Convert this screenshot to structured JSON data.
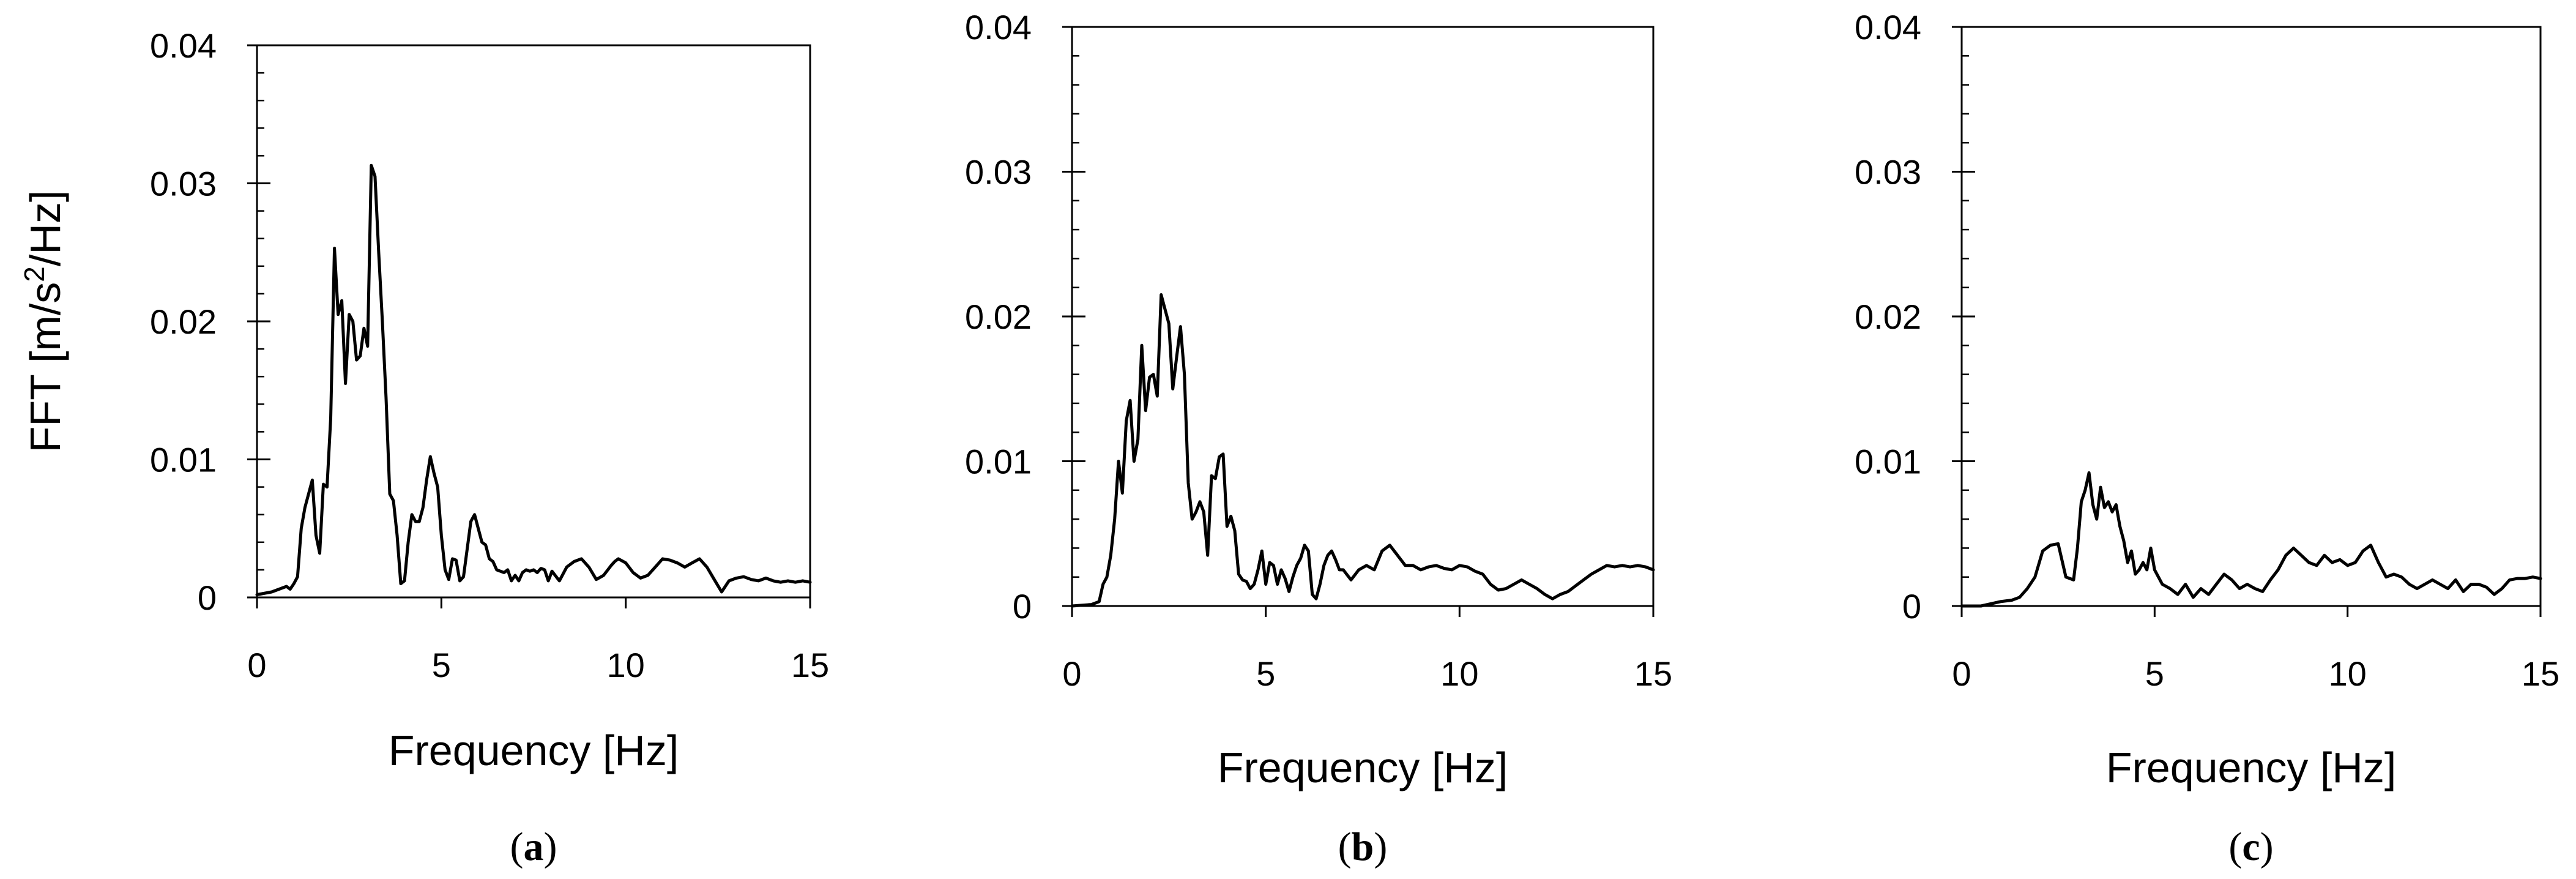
{
  "chart_data": [
    {
      "type": "line",
      "panel_label": "a",
      "xlabel": "Frequency [Hz]",
      "ylabel": "FFT [m/s2/Hz]",
      "ylabel_main": "FFT [m/s",
      "ylabel_sup": "2",
      "ylabel_end": "/Hz]",
      "xlim": [
        0,
        15
      ],
      "ylim": [
        0,
        0.04
      ],
      "x_ticks": [
        0,
        5,
        10,
        15
      ],
      "x_tick_labels": [
        "0",
        "5",
        "10",
        "15"
      ],
      "y_ticks": [
        0,
        0.01,
        0.02,
        0.03,
        0.04
      ],
      "y_tick_labels": [
        "0",
        "0.01",
        "0.02",
        "0.03",
        "0.04"
      ],
      "y_minor_step": 0.002,
      "grid": false,
      "series": [
        {
          "x": [
            0,
            0.4,
            0.8,
            0.9,
            1.0,
            1.1,
            1.2,
            1.3,
            1.5,
            1.6,
            1.7,
            1.8,
            1.9,
            2.0,
            2.1,
            2.2,
            2.3,
            2.4,
            2.5,
            2.6,
            2.7,
            2.8,
            2.9,
            3.0,
            3.1,
            3.2,
            3.3,
            3.4,
            3.5,
            3.6,
            3.7,
            3.8,
            3.9,
            4.0,
            4.1,
            4.2,
            4.3,
            4.4,
            4.5,
            4.6,
            4.7,
            4.8,
            4.9,
            5.0,
            5.1,
            5.2,
            5.3,
            5.4,
            5.5,
            5.6,
            5.7,
            5.8,
            5.9,
            6.0,
            6.1,
            6.2,
            6.3,
            6.4,
            6.5,
            6.6,
            6.7,
            6.8,
            6.9,
            7.0,
            7.1,
            7.2,
            7.3,
            7.4,
            7.5,
            7.6,
            7.7,
            7.8,
            7.9,
            8.0,
            8.2,
            8.4,
            8.6,
            8.8,
            9.0,
            9.2,
            9.4,
            9.6,
            9.7,
            9.8,
            10.0,
            10.2,
            10.4,
            10.6,
            10.8,
            11.0,
            11.2,
            11.4,
            11.6,
            11.8,
            12.0,
            12.2,
            12.4,
            12.6,
            12.8,
            13.0,
            13.2,
            13.4,
            13.6,
            13.8,
            14.0,
            14.2,
            14.4,
            14.6,
            14.8,
            15.0
          ],
          "y": [
            0.0002,
            0.0004,
            0.0008,
            0.0006,
            0.001,
            0.0015,
            0.005,
            0.0065,
            0.0085,
            0.0045,
            0.0032,
            0.0082,
            0.008,
            0.013,
            0.0253,
            0.0205,
            0.0215,
            0.0155,
            0.0205,
            0.02,
            0.0172,
            0.0175,
            0.0195,
            0.0182,
            0.0313,
            0.0305,
            0.025,
            0.02,
            0.0145,
            0.0075,
            0.007,
            0.0045,
            0.001,
            0.0012,
            0.004,
            0.006,
            0.0055,
            0.0055,
            0.0065,
            0.0085,
            0.0102,
            0.009,
            0.008,
            0.0045,
            0.002,
            0.0013,
            0.0028,
            0.0027,
            0.0012,
            0.0015,
            0.0035,
            0.0055,
            0.006,
            0.005,
            0.004,
            0.0038,
            0.0028,
            0.0026,
            0.002,
            0.0019,
            0.0018,
            0.002,
            0.0012,
            0.0016,
            0.0012,
            0.0018,
            0.002,
            0.0019,
            0.002,
            0.0018,
            0.0021,
            0.002,
            0.0012,
            0.0019,
            0.0012,
            0.0022,
            0.0026,
            0.0028,
            0.0022,
            0.0013,
            0.0016,
            0.0023,
            0.0026,
            0.0028,
            0.0025,
            0.0018,
            0.0014,
            0.0016,
            0.0022,
            0.0028,
            0.0027,
            0.0025,
            0.0022,
            0.0025,
            0.0028,
            0.0022,
            0.0013,
            0.0004,
            0.0012,
            0.0014,
            0.0015,
            0.0013,
            0.0012,
            0.0014,
            0.0012,
            0.0011,
            0.0012,
            0.0011,
            0.0012,
            0.0011
          ]
        }
      ]
    },
    {
      "type": "line",
      "panel_label": "b",
      "xlabel": "Frequency [Hz]",
      "ylabel": "",
      "xlim": [
        0,
        15
      ],
      "ylim": [
        0,
        0.04
      ],
      "x_ticks": [
        0,
        5,
        10,
        15
      ],
      "x_tick_labels": [
        "0",
        "5",
        "10",
        "15"
      ],
      "y_ticks": [
        0,
        0.01,
        0.02,
        0.03,
        0.04
      ],
      "y_tick_labels": [
        "0",
        "0.01",
        "0.02",
        "0.03",
        "0.04"
      ],
      "y_minor_step": 0.002,
      "grid": false,
      "series": [
        {
          "x": [
            0,
            0.5,
            0.7,
            0.8,
            0.9,
            1.0,
            1.1,
            1.2,
            1.3,
            1.4,
            1.5,
            1.6,
            1.7,
            1.8,
            1.9,
            2.0,
            2.1,
            2.2,
            2.3,
            2.4,
            2.5,
            2.6,
            2.7,
            2.8,
            2.9,
            3.0,
            3.1,
            3.2,
            3.3,
            3.4,
            3.5,
            3.6,
            3.7,
            3.8,
            3.9,
            4.0,
            4.1,
            4.2,
            4.3,
            4.4,
            4.5,
            4.6,
            4.7,
            4.8,
            4.9,
            5.0,
            5.1,
            5.2,
            5.3,
            5.4,
            5.5,
            5.6,
            5.7,
            5.8,
            5.9,
            6.0,
            6.1,
            6.2,
            6.3,
            6.4,
            6.5,
            6.6,
            6.7,
            6.8,
            6.9,
            7.0,
            7.2,
            7.4,
            7.6,
            7.8,
            8.0,
            8.2,
            8.4,
            8.6,
            8.8,
            9.0,
            9.2,
            9.4,
            9.6,
            9.8,
            10.0,
            10.2,
            10.4,
            10.6,
            10.8,
            11.0,
            11.2,
            11.4,
            11.6,
            11.8,
            12.0,
            12.2,
            12.4,
            12.6,
            12.8,
            13.0,
            13.2,
            13.4,
            13.6,
            13.8,
            14.0,
            14.2,
            14.4,
            14.6,
            14.8,
            15.0
          ],
          "y": [
            0,
            0.0001,
            0.0003,
            0.0015,
            0.002,
            0.0035,
            0.006,
            0.01,
            0.0078,
            0.0128,
            0.0142,
            0.01,
            0.0115,
            0.018,
            0.0135,
            0.0158,
            0.016,
            0.0145,
            0.0215,
            0.0205,
            0.0195,
            0.015,
            0.0172,
            0.0193,
            0.016,
            0.0085,
            0.006,
            0.0065,
            0.0072,
            0.0065,
            0.0035,
            0.009,
            0.0088,
            0.0103,
            0.0105,
            0.0055,
            0.0062,
            0.0052,
            0.0022,
            0.0018,
            0.0017,
            0.0012,
            0.0015,
            0.0025,
            0.0038,
            0.0015,
            0.003,
            0.0028,
            0.0015,
            0.0025,
            0.0019,
            0.001,
            0.002,
            0.0028,
            0.0033,
            0.0042,
            0.0038,
            0.0008,
            0.0005,
            0.0015,
            0.0028,
            0.0035,
            0.0038,
            0.0032,
            0.0025,
            0.0025,
            0.0018,
            0.0025,
            0.0028,
            0.0025,
            0.0038,
            0.0042,
            0.0035,
            0.0028,
            0.0028,
            0.0025,
            0.0027,
            0.0028,
            0.0026,
            0.0025,
            0.0028,
            0.0027,
            0.0024,
            0.0022,
            0.0015,
            0.0011,
            0.0012,
            0.0015,
            0.0018,
            0.0015,
            0.0012,
            0.0008,
            0.0005,
            0.0008,
            0.001,
            0.0014,
            0.0018,
            0.0022,
            0.0025,
            0.0028,
            0.0027,
            0.0028,
            0.0027,
            0.0028,
            0.0027,
            0.0025
          ]
        }
      ]
    },
    {
      "type": "line",
      "panel_label": "c",
      "xlabel": "Frequency [Hz]",
      "ylabel": "",
      "xlim": [
        0,
        15
      ],
      "ylim": [
        0,
        0.04
      ],
      "x_ticks": [
        0,
        5,
        10,
        15
      ],
      "x_tick_labels": [
        "0",
        "5",
        "10",
        "15"
      ],
      "y_ticks": [
        0,
        0.01,
        0.02,
        0.03,
        0.04
      ],
      "y_tick_labels": [
        "0",
        "0.01",
        "0.02",
        "0.03",
        "0.04"
      ],
      "y_minor_step": 0.002,
      "grid": false,
      "series": [
        {
          "x": [
            0,
            0.5,
            1.0,
            1.3,
            1.5,
            1.7,
            1.9,
            2.1,
            2.3,
            2.5,
            2.7,
            2.9,
            3.0,
            3.1,
            3.2,
            3.3,
            3.4,
            3.5,
            3.6,
            3.7,
            3.8,
            3.9,
            4.0,
            4.1,
            4.2,
            4.3,
            4.4,
            4.5,
            4.6,
            4.7,
            4.8,
            4.9,
            5.0,
            5.2,
            5.4,
            5.6,
            5.8,
            6.0,
            6.2,
            6.4,
            6.6,
            6.8,
            7.0,
            7.2,
            7.4,
            7.6,
            7.8,
            8.0,
            8.2,
            8.4,
            8.6,
            8.8,
            9.0,
            9.2,
            9.4,
            9.6,
            9.8,
            10.0,
            10.2,
            10.4,
            10.6,
            10.8,
            11.0,
            11.2,
            11.4,
            11.6,
            11.8,
            12.0,
            12.2,
            12.4,
            12.6,
            12.8,
            13.0,
            13.2,
            13.4,
            13.6,
            13.8,
            14.0,
            14.2,
            14.4,
            14.6,
            14.8,
            15.0
          ],
          "y": [
            0,
            0,
            0.0003,
            0.0004,
            0.0006,
            0.0012,
            0.002,
            0.0038,
            0.0042,
            0.0043,
            0.002,
            0.0018,
            0.004,
            0.0072,
            0.008,
            0.0092,
            0.007,
            0.006,
            0.0082,
            0.0068,
            0.0072,
            0.0065,
            0.007,
            0.0055,
            0.0045,
            0.003,
            0.0038,
            0.0022,
            0.0025,
            0.003,
            0.0025,
            0.004,
            0.0025,
            0.0015,
            0.0012,
            0.0008,
            0.0015,
            0.0006,
            0.0012,
            0.0008,
            0.0015,
            0.0022,
            0.0018,
            0.0012,
            0.0015,
            0.0012,
            0.001,
            0.0018,
            0.0025,
            0.0035,
            0.004,
            0.0035,
            0.003,
            0.0028,
            0.0035,
            0.003,
            0.0032,
            0.0028,
            0.003,
            0.0038,
            0.0042,
            0.003,
            0.002,
            0.0022,
            0.002,
            0.0015,
            0.0012,
            0.0015,
            0.0018,
            0.0015,
            0.0012,
            0.0018,
            0.001,
            0.0015,
            0.0015,
            0.0013,
            0.0008,
            0.0012,
            0.0018,
            0.0019,
            0.0019,
            0.002,
            0.0019
          ]
        }
      ]
    }
  ]
}
